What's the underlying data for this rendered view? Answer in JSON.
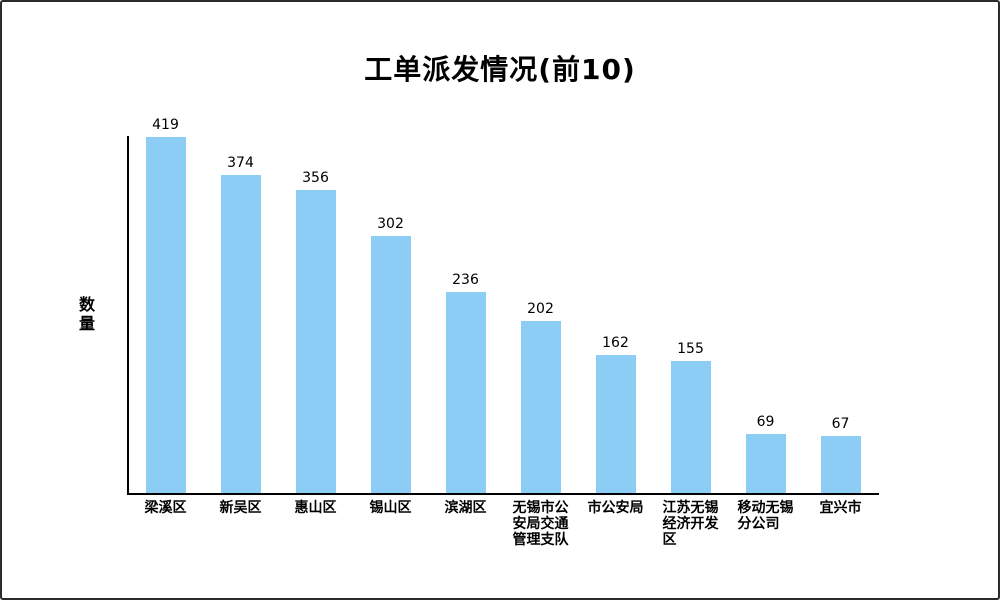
{
  "chart_data": {
    "type": "bar",
    "title": "工单派发情况(前10)",
    "ylabel": "数量",
    "xlabel": "",
    "categories": [
      "梁溪区",
      "新吴区",
      "惠山区",
      "锡山区",
      "滨湖区",
      "无锡市公安局交通管理支队",
      "市公安局",
      "江苏无锡经济开发区",
      "移动无锡分公司",
      "宜兴市"
    ],
    "values": [
      419,
      374,
      356,
      302,
      236,
      202,
      162,
      155,
      69,
      67
    ],
    "ylim": [
      0,
      420
    ],
    "grid": false,
    "legend": false,
    "bar_color": "#8CCDF5",
    "axis_color": "#000000",
    "text_color": "#000000",
    "label_wrap_chars": 4
  }
}
